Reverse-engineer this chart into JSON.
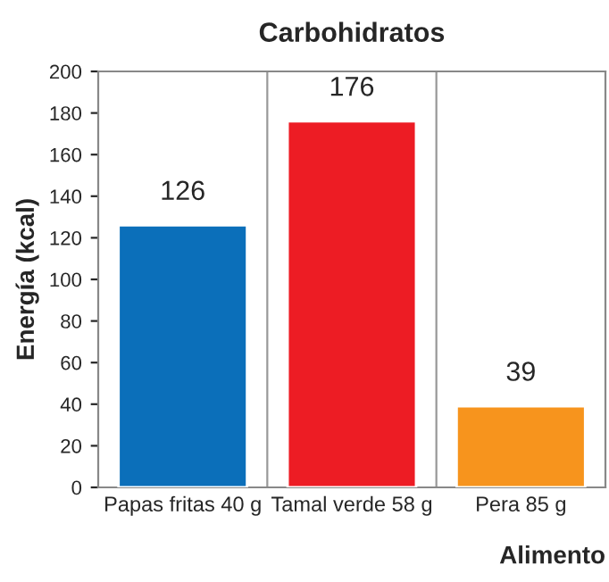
{
  "chart_data": {
    "type": "bar",
    "title": "Carbohidratos",
    "xlabel": "Alimento",
    "ylabel": "Energía (kcal)",
    "categories": [
      "Papas fritas 40 g",
      "Tamal verde 58 g",
      "Pera 85 g"
    ],
    "values": [
      126,
      176,
      39
    ],
    "colors": [
      "#0b6fba",
      "#ed1c24",
      "#f7941d"
    ],
    "ylim": [
      0,
      200
    ],
    "yticks": [
      0,
      20,
      40,
      60,
      80,
      100,
      120,
      140,
      160,
      180,
      200
    ],
    "grid": "x",
    "data_labels": true
  }
}
